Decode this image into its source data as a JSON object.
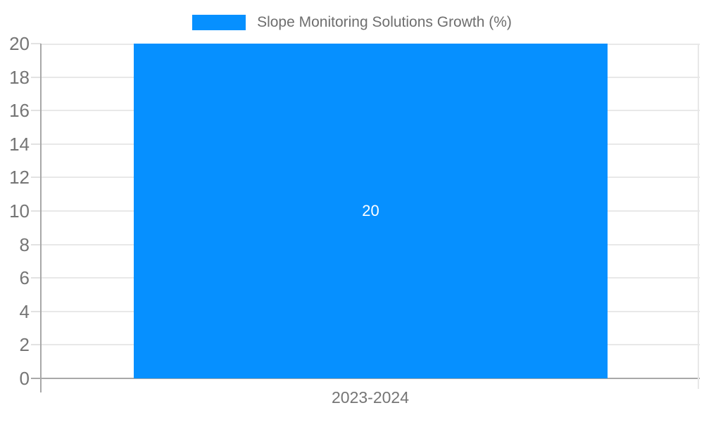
{
  "chart_data": {
    "type": "bar",
    "categories": [
      "2023-2024"
    ],
    "series": [
      {
        "name": "Slope Monitoring Solutions Growth (%)",
        "values": [
          20
        ],
        "color": "#0690ff"
      }
    ],
    "data_labels": [
      "20"
    ],
    "ylim": [
      0,
      20
    ],
    "yticks": [
      0,
      2,
      4,
      6,
      8,
      10,
      12,
      14,
      16,
      18,
      20
    ],
    "grid": true,
    "legend_position": "top"
  },
  "colors": {
    "bar": "#0690ff",
    "gridline": "#e8e8e8",
    "zero_line": "#a8a8a8",
    "tick": "#e2e2e2",
    "zero_tick": "#a8a8a8",
    "axis_line": "#a8a8a8",
    "plot_border": "#e8e8e8",
    "axis_label_text": "#757575",
    "legend_text": "#6e6e6e",
    "data_label_text": "#ffffff",
    "background": "#ffffff"
  }
}
